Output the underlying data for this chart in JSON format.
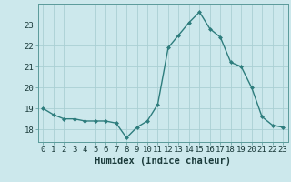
{
  "x": [
    0,
    1,
    2,
    3,
    4,
    5,
    6,
    7,
    8,
    9,
    10,
    11,
    12,
    13,
    14,
    15,
    16,
    17,
    18,
    19,
    20,
    21,
    22,
    23
  ],
  "y": [
    19.0,
    18.7,
    18.5,
    18.5,
    18.4,
    18.4,
    18.4,
    18.3,
    17.6,
    18.1,
    18.4,
    19.2,
    21.9,
    22.5,
    23.1,
    23.6,
    22.8,
    22.4,
    21.2,
    21.0,
    20.0,
    18.6,
    18.2,
    18.1
  ],
  "bg_color": "#cce8ec",
  "line_color": "#2e7d7d",
  "marker_color": "#2e7d7d",
  "grid_color": "#aacfd4",
  "xlabel": "Humidex (Indice chaleur)",
  "ylabel_ticks": [
    18,
    19,
    20,
    21,
    22,
    23
  ],
  "ylim": [
    17.4,
    24.0
  ],
  "xlim": [
    -0.5,
    23.5
  ],
  "xticks": [
    0,
    1,
    2,
    3,
    4,
    5,
    6,
    7,
    8,
    9,
    10,
    11,
    12,
    13,
    14,
    15,
    16,
    17,
    18,
    19,
    20,
    21,
    22,
    23
  ],
  "tick_fontsize": 6.5,
  "label_fontsize": 7.5
}
